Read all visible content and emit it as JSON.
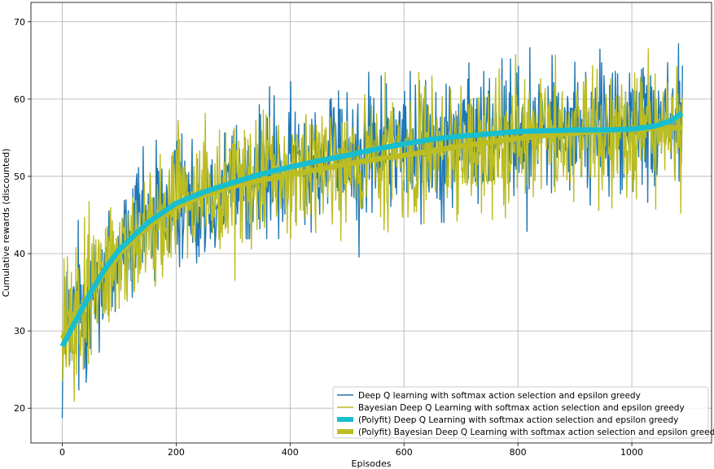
{
  "chart_data": {
    "type": "line",
    "title": "",
    "xlabel": "Episodes",
    "ylabel": "Cumulative rewards (discounted)",
    "xlim": [
      -55,
      1140
    ],
    "ylim": [
      15.5,
      72.5
    ],
    "xticks": [
      0,
      200,
      400,
      600,
      800,
      1000
    ],
    "yticks": [
      20,
      30,
      40,
      50,
      60,
      70
    ],
    "grid": true,
    "legend_position": "lower-right",
    "n_episodes": 1090,
    "series": [
      {
        "name": "Deep Q learning with softmax action selection and epsilon greedy",
        "kind": "raw",
        "color": "#1f77b4",
        "trend": [
          [
            0,
            27.5
          ],
          [
            50,
            35.0
          ],
          [
            100,
            40.5
          ],
          [
            150,
            44.0
          ],
          [
            200,
            46.5
          ],
          [
            300,
            49.2
          ],
          [
            400,
            51.2
          ],
          [
            500,
            52.7
          ],
          [
            600,
            54.2
          ],
          [
            700,
            55.2
          ],
          [
            800,
            55.8
          ],
          [
            900,
            56.0
          ],
          [
            1000,
            56.1
          ],
          [
            1088,
            57.5
          ]
        ],
        "noise_amplitude": 5.2,
        "min": 18.2,
        "max": 69.5
      },
      {
        "name": "Bayesian Deep Q Learning with softmax action selection and epsilon greedy",
        "kind": "raw",
        "color": "#bcbd22",
        "trend": [
          [
            0,
            29.0
          ],
          [
            50,
            35.0
          ],
          [
            100,
            40.0
          ],
          [
            150,
            43.5
          ],
          [
            200,
            46.0
          ],
          [
            300,
            48.7
          ],
          [
            400,
            50.2
          ],
          [
            500,
            51.6
          ],
          [
            600,
            52.7
          ],
          [
            700,
            53.9
          ],
          [
            800,
            54.9
          ],
          [
            900,
            55.6
          ],
          [
            1000,
            56.1
          ],
          [
            1088,
            56.3
          ]
        ],
        "noise_amplitude": 5.0,
        "min": 20.9,
        "max": 69.1
      },
      {
        "name": "(Polyfit) Deep Q Learning with softmax action selection and epsilon greedy",
        "kind": "fit",
        "color": "#17becf",
        "points": [
          [
            0,
            28.0
          ],
          [
            25,
            31.5
          ],
          [
            50,
            35.0
          ],
          [
            75,
            38.0
          ],
          [
            100,
            40.5
          ],
          [
            150,
            44.0
          ],
          [
            200,
            46.5
          ],
          [
            250,
            48.0
          ],
          [
            300,
            49.2
          ],
          [
            350,
            50.3
          ],
          [
            400,
            51.2
          ],
          [
            450,
            52.0
          ],
          [
            500,
            52.7
          ],
          [
            550,
            53.5
          ],
          [
            600,
            54.2
          ],
          [
            650,
            54.8
          ],
          [
            700,
            55.2
          ],
          [
            750,
            55.5
          ],
          [
            800,
            55.8
          ],
          [
            850,
            55.9
          ],
          [
            900,
            56.0
          ],
          [
            950,
            56.0
          ],
          [
            1000,
            56.1
          ],
          [
            1040,
            56.5
          ],
          [
            1070,
            57.2
          ],
          [
            1088,
            58.2
          ]
        ]
      },
      {
        "name": "(Polyfit) Bayesian Deep Q Learning with softmax action selection and epsilon greedy",
        "kind": "fit",
        "color": "#bcbd22",
        "points": [
          [
            0,
            29.0
          ],
          [
            25,
            32.0
          ],
          [
            50,
            35.0
          ],
          [
            75,
            37.6
          ],
          [
            100,
            40.0
          ],
          [
            150,
            43.5
          ],
          [
            200,
            46.0
          ],
          [
            250,
            47.6
          ],
          [
            300,
            48.7
          ],
          [
            350,
            49.5
          ],
          [
            400,
            50.2
          ],
          [
            450,
            50.9
          ],
          [
            500,
            51.6
          ],
          [
            550,
            52.2
          ],
          [
            600,
            52.7
          ],
          [
            650,
            53.3
          ],
          [
            700,
            53.9
          ],
          [
            750,
            54.4
          ],
          [
            800,
            54.9
          ],
          [
            850,
            55.3
          ],
          [
            900,
            55.6
          ],
          [
            950,
            55.9
          ],
          [
            1000,
            56.1
          ],
          [
            1050,
            56.2
          ],
          [
            1088,
            56.3
          ]
        ]
      }
    ]
  }
}
